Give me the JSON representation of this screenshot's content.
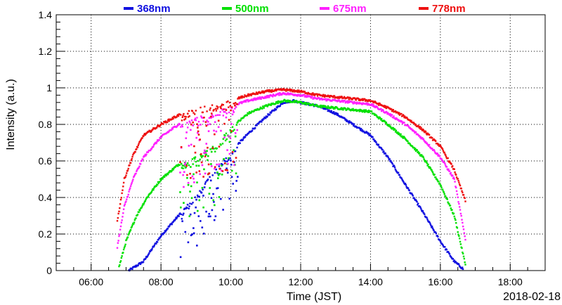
{
  "chart_data": {
    "type": "scatter",
    "title": "",
    "xlabel": "Time (JST)",
    "ylabel": "Intensity (a.u.)",
    "date_label": "2018-02-18",
    "xlim_hours": [
      5.0,
      19.0
    ],
    "ylim": [
      0,
      1.4
    ],
    "x_ticks": [
      {
        "hour": 6,
        "label": "06:00"
      },
      {
        "hour": 8,
        "label": "08:00"
      },
      {
        "hour": 10,
        "label": "10:00"
      },
      {
        "hour": 12,
        "label": "12:00"
      },
      {
        "hour": 14,
        "label": "14:00"
      },
      {
        "hour": 16,
        "label": "16:00"
      },
      {
        "hour": 18,
        "label": "18:00"
      }
    ],
    "y_ticks": [
      0,
      0.2,
      0.4,
      0.6,
      0.8,
      1,
      1.2,
      1.4
    ],
    "grid": true,
    "legend_position": "top",
    "series": [
      {
        "name": "368nm",
        "color": "#1010e0",
        "start_hour": 7.08,
        "end_hour": 16.65,
        "anchors": [
          [
            7.08,
            0.0
          ],
          [
            7.5,
            0.05
          ],
          [
            8.0,
            0.19
          ],
          [
            8.5,
            0.3
          ],
          [
            9.0,
            0.42
          ],
          [
            9.5,
            0.55
          ],
          [
            10.0,
            0.65
          ],
          [
            10.5,
            0.75
          ],
          [
            11.0,
            0.84
          ],
          [
            11.5,
            0.92
          ],
          [
            11.8,
            0.93
          ],
          [
            12.0,
            0.92
          ],
          [
            12.5,
            0.9
          ],
          [
            13.0,
            0.86
          ],
          [
            13.5,
            0.8
          ],
          [
            14.0,
            0.74
          ],
          [
            14.5,
            0.62
          ],
          [
            15.0,
            0.47
          ],
          [
            15.5,
            0.32
          ],
          [
            16.0,
            0.16
          ],
          [
            16.4,
            0.05
          ],
          [
            16.65,
            0.01
          ]
        ],
        "scatter_window": [
          8.55,
          10.2
        ],
        "scatter_drop": 0.3
      },
      {
        "name": "500nm",
        "color": "#00e000",
        "start_hour": 6.8,
        "end_hour": 16.72,
        "anchors": [
          [
            6.8,
            0.02
          ],
          [
            7.0,
            0.16
          ],
          [
            7.3,
            0.3
          ],
          [
            7.6,
            0.4
          ],
          [
            8.0,
            0.5
          ],
          [
            8.5,
            0.58
          ],
          [
            9.0,
            0.63
          ],
          [
            9.5,
            0.68
          ],
          [
            10.0,
            0.78
          ],
          [
            10.5,
            0.86
          ],
          [
            11.0,
            0.9
          ],
          [
            11.5,
            0.93
          ],
          [
            12.0,
            0.92
          ],
          [
            12.5,
            0.9
          ],
          [
            13.0,
            0.89
          ],
          [
            13.5,
            0.88
          ],
          [
            14.0,
            0.87
          ],
          [
            14.5,
            0.8
          ],
          [
            15.0,
            0.72
          ],
          [
            15.5,
            0.62
          ],
          [
            16.0,
            0.47
          ],
          [
            16.4,
            0.3
          ],
          [
            16.72,
            0.03
          ]
        ],
        "scatter_window": [
          8.55,
          10.2
        ],
        "scatter_drop": 0.3
      },
      {
        "name": "675nm",
        "color": "#ff20ff",
        "start_hour": 6.75,
        "end_hour": 16.72,
        "anchors": [
          [
            6.75,
            0.13
          ],
          [
            6.95,
            0.35
          ],
          [
            7.2,
            0.5
          ],
          [
            7.5,
            0.62
          ],
          [
            8.0,
            0.73
          ],
          [
            8.5,
            0.8
          ],
          [
            9.0,
            0.84
          ],
          [
            9.5,
            0.87
          ],
          [
            10.0,
            0.9
          ],
          [
            10.5,
            0.93
          ],
          [
            11.0,
            0.95
          ],
          [
            11.5,
            0.97
          ],
          [
            12.0,
            0.96
          ],
          [
            12.5,
            0.94
          ],
          [
            13.0,
            0.93
          ],
          [
            13.5,
            0.92
          ],
          [
            14.0,
            0.91
          ],
          [
            14.5,
            0.86
          ],
          [
            15.0,
            0.8
          ],
          [
            15.5,
            0.72
          ],
          [
            16.0,
            0.62
          ],
          [
            16.4,
            0.5
          ],
          [
            16.72,
            0.17
          ]
        ],
        "scatter_window": [
          8.55,
          10.2
        ],
        "scatter_drop": 0.3
      },
      {
        "name": "778nm",
        "color": "#ee1111",
        "start_hour": 6.75,
        "end_hour": 16.72,
        "anchors": [
          [
            6.75,
            0.27
          ],
          [
            6.95,
            0.5
          ],
          [
            7.2,
            0.63
          ],
          [
            7.5,
            0.74
          ],
          [
            8.0,
            0.8
          ],
          [
            8.5,
            0.85
          ],
          [
            9.0,
            0.89
          ],
          [
            9.5,
            0.91
          ],
          [
            10.0,
            0.93
          ],
          [
            10.5,
            0.96
          ],
          [
            11.0,
            0.98
          ],
          [
            11.5,
            0.99
          ],
          [
            12.0,
            0.98
          ],
          [
            12.5,
            0.96
          ],
          [
            13.0,
            0.95
          ],
          [
            13.5,
            0.94
          ],
          [
            14.0,
            0.93
          ],
          [
            14.5,
            0.89
          ],
          [
            15.0,
            0.84
          ],
          [
            15.5,
            0.77
          ],
          [
            16.0,
            0.68
          ],
          [
            16.4,
            0.55
          ],
          [
            16.72,
            0.38
          ]
        ],
        "scatter_window": [
          8.55,
          10.2
        ],
        "scatter_drop": 0.3
      }
    ]
  }
}
